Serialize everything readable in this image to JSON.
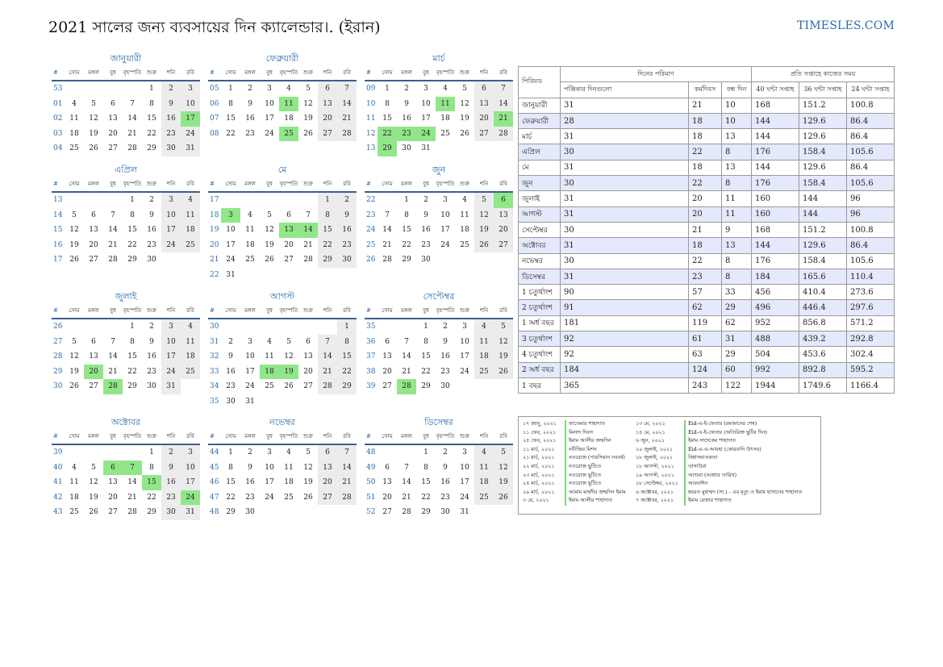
{
  "title": "2021 সালের জন্য ব্যবসায়ের দিন ক্যালেন্ডার।. (ইরান)",
  "brand": "TIMESLES.COM",
  "weekdays": [
    "#",
    "সোম",
    "মঙ্গল",
    "বুধ",
    "বৃহস্পতি",
    "শুক্র",
    "শনি",
    "রবি"
  ],
  "months": [
    {
      "name": "জানুয়ারী",
      "weeks": [
        {
          "n": "53",
          "d": [
            "",
            "",
            "",
            "",
            "1",
            "2",
            "3"
          ],
          "h": []
        },
        {
          "n": "01",
          "d": [
            "4",
            "5",
            "6",
            "7",
            "8",
            "9",
            "10"
          ],
          "h": []
        },
        {
          "n": "02",
          "d": [
            "11",
            "12",
            "13",
            "14",
            "15",
            "16",
            "17"
          ],
          "h": [
            6
          ]
        },
        {
          "n": "03",
          "d": [
            "18",
            "19",
            "20",
            "21",
            "22",
            "23",
            "24"
          ],
          "h": []
        },
        {
          "n": "04",
          "d": [
            "25",
            "26",
            "27",
            "28",
            "29",
            "30",
            "31"
          ],
          "h": []
        }
      ]
    },
    {
      "name": "ফেব্রুয়ারী",
      "weeks": [
        {
          "n": "05",
          "d": [
            "1",
            "2",
            "3",
            "4",
            "5",
            "6",
            "7"
          ],
          "h": []
        },
        {
          "n": "06",
          "d": [
            "8",
            "9",
            "10",
            "11",
            "12",
            "13",
            "14"
          ],
          "h": [
            3
          ]
        },
        {
          "n": "07",
          "d": [
            "15",
            "16",
            "17",
            "18",
            "19",
            "20",
            "21"
          ],
          "h": []
        },
        {
          "n": "08",
          "d": [
            "22",
            "23",
            "24",
            "25",
            "26",
            "27",
            "28"
          ],
          "h": [
            3
          ]
        }
      ]
    },
    {
      "name": "মার্চ",
      "weeks": [
        {
          "n": "09",
          "d": [
            "1",
            "2",
            "3",
            "4",
            "5",
            "6",
            "7"
          ],
          "h": []
        },
        {
          "n": "10",
          "d": [
            "8",
            "9",
            "10",
            "11",
            "12",
            "13",
            "14"
          ],
          "h": [
            3
          ]
        },
        {
          "n": "11",
          "d": [
            "15",
            "16",
            "17",
            "18",
            "19",
            "20",
            "21"
          ],
          "h": [
            6
          ]
        },
        {
          "n": "12",
          "d": [
            "22",
            "23",
            "24",
            "25",
            "26",
            "27",
            "28"
          ],
          "h": [
            0,
            1,
            2
          ]
        },
        {
          "n": "13",
          "d": [
            "29",
            "30",
            "31",
            "",
            "",
            "",
            ""
          ],
          "h": [
            0
          ]
        }
      ]
    },
    {
      "name": "এপ্রিল",
      "weeks": [
        {
          "n": "13",
          "d": [
            "",
            "",
            "",
            "1",
            "2",
            "3",
            "4"
          ],
          "h": []
        },
        {
          "n": "14",
          "d": [
            "5",
            "6",
            "7",
            "8",
            "9",
            "10",
            "11"
          ],
          "h": []
        },
        {
          "n": "15",
          "d": [
            "12",
            "13",
            "14",
            "15",
            "16",
            "17",
            "18"
          ],
          "h": []
        },
        {
          "n": "16",
          "d": [
            "19",
            "20",
            "21",
            "22",
            "23",
            "24",
            "25"
          ],
          "h": []
        },
        {
          "n": "17",
          "d": [
            "26",
            "27",
            "28",
            "29",
            "30",
            "",
            ""
          ],
          "h": []
        }
      ]
    },
    {
      "name": "মে",
      "weeks": [
        {
          "n": "17",
          "d": [
            "",
            "",
            "",
            "",
            "",
            "1",
            "2"
          ],
          "h": []
        },
        {
          "n": "18",
          "d": [
            "3",
            "4",
            "5",
            "6",
            "7",
            "8",
            "9"
          ],
          "h": [
            0
          ]
        },
        {
          "n": "19",
          "d": [
            "10",
            "11",
            "12",
            "13",
            "14",
            "15",
            "16"
          ],
          "h": [
            3,
            4
          ]
        },
        {
          "n": "20",
          "d": [
            "17",
            "18",
            "19",
            "20",
            "21",
            "22",
            "23"
          ],
          "h": []
        },
        {
          "n": "21",
          "d": [
            "24",
            "25",
            "26",
            "27",
            "28",
            "29",
            "30"
          ],
          "h": []
        },
        {
          "n": "22",
          "d": [
            "31",
            "",
            "",
            "",
            "",
            "",
            ""
          ],
          "h": []
        }
      ]
    },
    {
      "name": "জুন",
      "weeks": [
        {
          "n": "22",
          "d": [
            "",
            "1",
            "2",
            "3",
            "4",
            "5",
            "6"
          ],
          "h": [
            6
          ]
        },
        {
          "n": "23",
          "d": [
            "7",
            "8",
            "9",
            "10",
            "11",
            "12",
            "13"
          ],
          "h": []
        },
        {
          "n": "24",
          "d": [
            "14",
            "15",
            "16",
            "17",
            "18",
            "19",
            "20"
          ],
          "h": []
        },
        {
          "n": "25",
          "d": [
            "21",
            "22",
            "23",
            "24",
            "25",
            "26",
            "27"
          ],
          "h": []
        },
        {
          "n": "26",
          "d": [
            "28",
            "29",
            "30",
            "",
            "",
            "",
            ""
          ],
          "h": []
        }
      ]
    },
    {
      "name": "জুলাই",
      "weeks": [
        {
          "n": "26",
          "d": [
            "",
            "",
            "",
            "1",
            "2",
            "3",
            "4"
          ],
          "h": []
        },
        {
          "n": "27",
          "d": [
            "5",
            "6",
            "7",
            "8",
            "9",
            "10",
            "11"
          ],
          "h": []
        },
        {
          "n": "28",
          "d": [
            "12",
            "13",
            "14",
            "15",
            "16",
            "17",
            "18"
          ],
          "h": []
        },
        {
          "n": "29",
          "d": [
            "19",
            "20",
            "21",
            "22",
            "23",
            "24",
            "25"
          ],
          "h": [
            1
          ]
        },
        {
          "n": "30",
          "d": [
            "26",
            "27",
            "28",
            "29",
            "30",
            "31",
            ""
          ],
          "h": [
            2
          ]
        }
      ]
    },
    {
      "name": "আগস্ট",
      "weeks": [
        {
          "n": "30",
          "d": [
            "",
            "",
            "",
            "",
            "",
            "",
            "1"
          ],
          "h": []
        },
        {
          "n": "31",
          "d": [
            "2",
            "3",
            "4",
            "5",
            "6",
            "7",
            "8"
          ],
          "h": []
        },
        {
          "n": "32",
          "d": [
            "9",
            "10",
            "11",
            "12",
            "13",
            "14",
            "15"
          ],
          "h": []
        },
        {
          "n": "33",
          "d": [
            "16",
            "17",
            "18",
            "19",
            "20",
            "21",
            "22"
          ],
          "h": [
            2,
            3
          ]
        },
        {
          "n": "34",
          "d": [
            "23",
            "24",
            "25",
            "26",
            "27",
            "28",
            "29"
          ],
          "h": []
        },
        {
          "n": "35",
          "d": [
            "30",
            "31",
            "",
            "",
            "",
            "",
            ""
          ],
          "h": []
        }
      ]
    },
    {
      "name": "সেপ্টেম্বর",
      "weeks": [
        {
          "n": "35",
          "d": [
            "",
            "",
            "1",
            "2",
            "3",
            "4",
            "5"
          ],
          "h": []
        },
        {
          "n": "36",
          "d": [
            "6",
            "7",
            "8",
            "9",
            "10",
            "11",
            "12"
          ],
          "h": []
        },
        {
          "n": "37",
          "d": [
            "13",
            "14",
            "15",
            "16",
            "17",
            "18",
            "19"
          ],
          "h": []
        },
        {
          "n": "38",
          "d": [
            "20",
            "21",
            "22",
            "23",
            "24",
            "25",
            "26"
          ],
          "h": []
        },
        {
          "n": "39",
          "d": [
            "27",
            "28",
            "29",
            "30",
            "",
            "",
            ""
          ],
          "h": [
            1
          ]
        }
      ]
    },
    {
      "name": "অক্টোবর",
      "weeks": [
        {
          "n": "39",
          "d": [
            "",
            "",
            "",
            "",
            "1",
            "2",
            "3"
          ],
          "h": []
        },
        {
          "n": "40",
          "d": [
            "4",
            "5",
            "6",
            "7",
            "8",
            "9",
            "10"
          ],
          "h": [
            2,
            3
          ]
        },
        {
          "n": "41",
          "d": [
            "11",
            "12",
            "13",
            "14",
            "15",
            "16",
            "17"
          ],
          "h": [
            4
          ]
        },
        {
          "n": "42",
          "d": [
            "18",
            "19",
            "20",
            "21",
            "22",
            "23",
            "24"
          ],
          "h": [
            6
          ]
        },
        {
          "n": "43",
          "d": [
            "25",
            "26",
            "27",
            "28",
            "29",
            "30",
            "31"
          ],
          "h": []
        }
      ]
    },
    {
      "name": "নভেম্বর",
      "weeks": [
        {
          "n": "44",
          "d": [
            "1",
            "2",
            "3",
            "4",
            "5",
            "6",
            "7"
          ],
          "h": []
        },
        {
          "n": "45",
          "d": [
            "8",
            "9",
            "10",
            "11",
            "12",
            "13",
            "14"
          ],
          "h": []
        },
        {
          "n": "46",
          "d": [
            "15",
            "16",
            "17",
            "18",
            "19",
            "20",
            "21"
          ],
          "h": []
        },
        {
          "n": "47",
          "d": [
            "22",
            "23",
            "24",
            "25",
            "26",
            "27",
            "28"
          ],
          "h": []
        },
        {
          "n": "48",
          "d": [
            "29",
            "30",
            "",
            "",
            "",
            "",
            ""
          ],
          "h": []
        }
      ]
    },
    {
      "name": "ডিসেম্বর",
      "weeks": [
        {
          "n": "48",
          "d": [
            "",
            "",
            "1",
            "2",
            "3",
            "4",
            "5"
          ],
          "h": []
        },
        {
          "n": "49",
          "d": [
            "6",
            "7",
            "8",
            "9",
            "10",
            "11",
            "12"
          ],
          "h": []
        },
        {
          "n": "50",
          "d": [
            "13",
            "14",
            "15",
            "16",
            "17",
            "18",
            "19"
          ],
          "h": []
        },
        {
          "n": "51",
          "d": [
            "20",
            "21",
            "22",
            "23",
            "24",
            "25",
            "26"
          ],
          "h": []
        },
        {
          "n": "52",
          "d": [
            "27",
            "28",
            "29",
            "30",
            "31",
            "",
            ""
          ],
          "h": []
        }
      ]
    }
  ],
  "stats": {
    "h_period": "পিরিয়ড",
    "h_days": "দিনের পরিমাণ",
    "h_hours": "প্রতি সপ্তাহে কাজের সময়",
    "h_cal": "পঞ্জিকার দিনগুলো",
    "h_work": "কর্মদিবস",
    "h_off": "বন্ধ দিন",
    "h_40": "40 ঘন্টা সপ্তাহ",
    "h_36": "36 ঘন্টা সপ্তাহ",
    "h_24": "24 ঘন্টা সপ্তাহ",
    "rows": [
      [
        "জানুয়ারী",
        "31",
        "21",
        "10",
        "168",
        "151.2",
        "100.8"
      ],
      [
        "ফেব্রুয়ারী",
        "28",
        "18",
        "10",
        "144",
        "129.6",
        "86.4"
      ],
      [
        "মার্চ",
        "31",
        "18",
        "13",
        "144",
        "129.6",
        "86.4"
      ],
      [
        "এপ্রিল",
        "30",
        "22",
        "8",
        "176",
        "158.4",
        "105.6"
      ],
      [
        "মে",
        "31",
        "18",
        "13",
        "144",
        "129.6",
        "86.4"
      ],
      [
        "জুন",
        "30",
        "22",
        "8",
        "176",
        "158.4",
        "105.6"
      ],
      [
        "জুলাই",
        "31",
        "20",
        "11",
        "160",
        "144",
        "96"
      ],
      [
        "আগস্ট",
        "31",
        "20",
        "11",
        "160",
        "144",
        "96"
      ],
      [
        "সেপ্টেম্বর",
        "30",
        "21",
        "9",
        "168",
        "151.2",
        "100.8"
      ],
      [
        "অক্টোবর",
        "31",
        "18",
        "13",
        "144",
        "129.6",
        "86.4"
      ],
      [
        "নভেম্বর",
        "30",
        "22",
        "8",
        "176",
        "158.4",
        "105.6"
      ],
      [
        "ডিসেম্বর",
        "31",
        "23",
        "8",
        "184",
        "165.6",
        "110.4"
      ],
      [
        "1 চতুর্থাংশ",
        "90",
        "57",
        "33",
        "456",
        "410.4",
        "273.6"
      ],
      [
        "2 চতুর্থাংশ",
        "91",
        "62",
        "29",
        "496",
        "446.4",
        "297.6"
      ],
      [
        "1 অর্ধ বছর",
        "181",
        "119",
        "62",
        "952",
        "856.8",
        "571.2"
      ],
      [
        "3 চতুর্থাংশ",
        "92",
        "61",
        "31",
        "488",
        "439.2",
        "292.8"
      ],
      [
        "4 চতুর্থাংশ",
        "92",
        "63",
        "29",
        "504",
        "453.6",
        "302.4"
      ],
      [
        "2 অর্ধ বছর",
        "184",
        "124",
        "60",
        "992",
        "892.8",
        "595.2"
      ],
      [
        "1 বছর",
        "365",
        "243",
        "122",
        "1944",
        "1749.6",
        "1166.4"
      ]
    ]
  },
  "holidays": [
    [
      "১৭ জানু, ২০২১",
      "ফাতেমার শাহাদাত",
      "১৩ মে, ২০২১",
      "Eid-এ-ই-ফেতার (রমজানের শেষ)"
    ],
    [
      "১১ ফেব, ২০২১",
      "মিলাদ দিবস",
      "১৪ মে, ২০২১",
      "Eid-এ-ই-ফেতার (অতিরিক্ত ছুটির দিন)"
    ],
    [
      "২৫ ফেব, ২০২১",
      "ইমাম আলীর জন্মদিন",
      "৬ জুন, ২০২১",
      "ইমাম সাদেকের শাহাদাত"
    ],
    [
      "১১ মার্চ, ২০২১",
      "নবীজির মিশন",
      "২০ জুলাই, ২০২১",
      "Eid-এ-এ-আযহা (কোরবানি উৎসব)"
    ],
    [
      "২১ মার্চ, ২০২১",
      "নওরোজ (পারসিয়ান নববর্ষ)",
      "২৮ জুলাই, ২০২১",
      "বিশ্বাসঘাতকতা"
    ],
    [
      "২২ মার্চ, ২০২১",
      "নওরোজ ছুটিতে",
      "১৮ আগস্ট, ২০২১",
      "তাসাউরা"
    ],
    [
      "২৩ মার্চ, ২০২১",
      "নওরোজ ছুটিতে",
      "১৯ আগস্ট, ২০২১",
      "আশুরা (আশ্রার তারিখ)"
    ],
    [
      "২৪ মার্চ, ২০২১",
      "নওরোজ ছুটিতে",
      "২৮ সেপ্টেম্বর, ২০২১",
      "আরবাঈন"
    ],
    [
      "২৯ মার্চ, ২০২১",
      "আমাম মাহদীর জন্মদিন ইমাম",
      "৬ অক্টোবর, ২০২১",
      "হযরত মুহাম্মদ (সা.) - এর মৃত্যু ও ইমাম হাসানের শাহাদাত"
    ],
    [
      "৩ মে, ২০২১",
      "ইমাম আলীর শাহাদাত",
      "৭ অক্টোবর, ২০২১",
      "ইমাম রেজার শাহাদাত"
    ]
  ]
}
